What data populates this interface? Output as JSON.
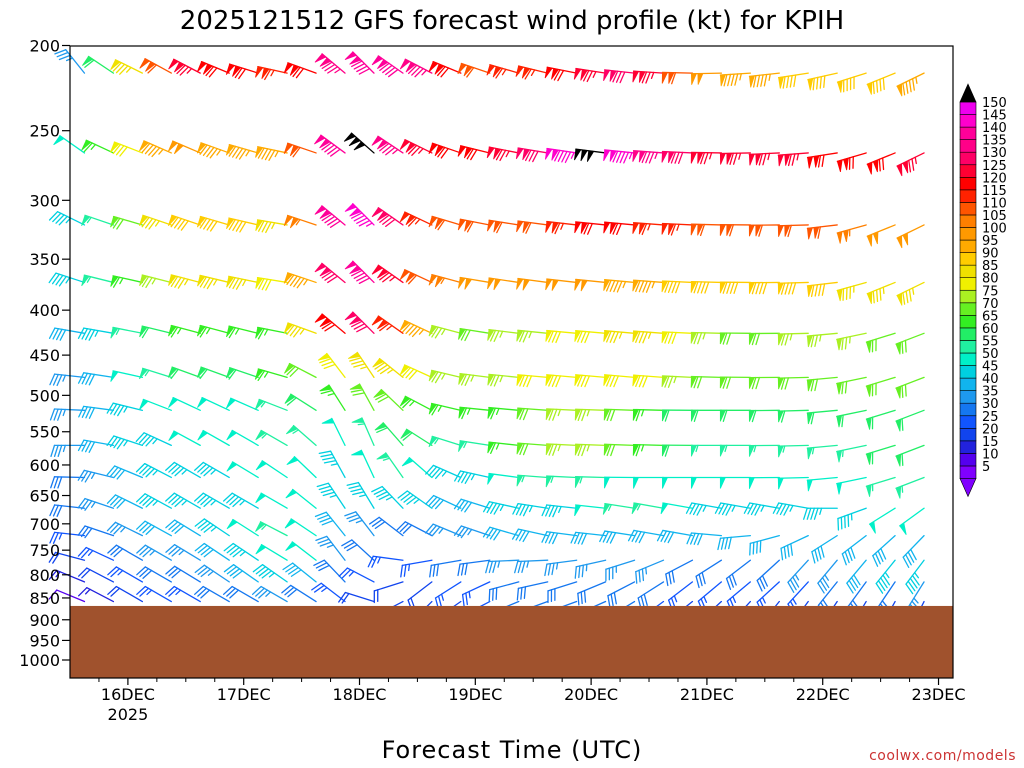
{
  "chart_data": {
    "type": "wind_barb_profile",
    "title": "2025121512 GFS forecast wind profile (kt) for KPIH",
    "xlabel": "Forecast Time (UTC)",
    "ylabel": "",
    "y_axis": {
      "unit": "hPa",
      "scale": "log",
      "range": [
        1000,
        200
      ],
      "ticks": [
        200,
        250,
        300,
        350,
        400,
        450,
        500,
        550,
        600,
        650,
        700,
        750,
        800,
        850,
        900,
        950,
        1000
      ]
    },
    "x_axis": {
      "range_hours": [
        0,
        183
      ],
      "ticks": [
        {
          "label": "16DEC",
          "sub": "2025",
          "hour": 12
        },
        {
          "label": "17DEC",
          "sub": "",
          "hour": 36
        },
        {
          "label": "18DEC",
          "sub": "",
          "hour": 60
        },
        {
          "label": "19DEC",
          "sub": "",
          "hour": 84
        },
        {
          "label": "20DEC",
          "sub": "",
          "hour": 108
        },
        {
          "label": "21DEC",
          "sub": "",
          "hour": 132
        },
        {
          "label": "22DEC",
          "sub": "",
          "hour": 156
        },
        {
          "label": "23DEC",
          "sub": "",
          "hour": 180
        }
      ]
    },
    "terrain": {
      "top_pressure": 868,
      "color": "#a0522d"
    },
    "colorbar": {
      "levels": [
        5,
        10,
        15,
        20,
        25,
        30,
        35,
        40,
        45,
        50,
        55,
        60,
        65,
        70,
        75,
        80,
        85,
        90,
        95,
        100,
        105,
        110,
        115,
        120,
        125,
        130,
        135,
        140,
        145,
        150
      ],
      "colors": [
        "#8000ff",
        "#5500ee",
        "#2222dd",
        "#1144ee",
        "#1155ff",
        "#1577f0",
        "#1e99ee",
        "#11b4ee",
        "#00d0e0",
        "#00f0c8",
        "#20f0a0",
        "#22ee66",
        "#33ee22",
        "#66f022",
        "#aaf022",
        "#f0f000",
        "#f0e000",
        "#ffcc00",
        "#ffaa00",
        "#ff9900",
        "#ff7f00",
        "#ff5500",
        "#ff2200",
        "#ff0000",
        "#ff0033",
        "#ff0066",
        "#ff0088",
        "#ff0099",
        "#ff00cc",
        "#ee00ee"
      ],
      "overflow_color": "#000000",
      "underflow_color": "#8000ff"
    },
    "profile_levels_hpa": [
      215,
      265,
      320,
      372,
      425,
      477,
      520,
      570,
      620,
      672,
      722,
      770,
      815,
      858
    ],
    "anchors": [
      {
        "hour": 0,
        "speeds": [
          24,
          40,
          38,
          38,
          35,
          30,
          32,
          30,
          28,
          25,
          22,
          18,
          10,
          6
        ],
        "dirs": [
          330,
          310,
          300,
          290,
          280,
          275,
          270,
          265,
          265,
          270,
          270,
          280,
          290,
          290
        ]
      },
      {
        "hour": 12,
        "speeds": [
          70,
          70,
          62,
          60,
          50,
          45,
          42,
          42,
          40,
          38,
          35,
          28,
          25,
          18
        ],
        "dirs": [
          295,
          290,
          285,
          282,
          280,
          280,
          280,
          285,
          290,
          295,
          295,
          300,
          300,
          300
        ]
      },
      {
        "hour": 24,
        "speeds": [
          125,
          100,
          90,
          82,
          65,
          58,
          50,
          48,
          45,
          45,
          40,
          35,
          30,
          25
        ],
        "dirs": [
          300,
          295,
          290,
          285,
          285,
          290,
          295,
          298,
          300,
          300,
          300,
          300,
          300,
          300
        ]
      },
      {
        "hour": 36,
        "speeds": [
          120,
          95,
          90,
          85,
          62,
          60,
          50,
          50,
          48,
          45,
          45,
          40,
          35,
          30
        ],
        "dirs": [
          290,
          288,
          285,
          283,
          285,
          290,
          295,
          300,
          300,
          300,
          305,
          305,
          305,
          300
        ]
      },
      {
        "hour": 48,
        "speeds": [
          110,
          95,
          85,
          80,
          65,
          65,
          58,
          55,
          50,
          50,
          55,
          55,
          45,
          35
        ],
        "dirs": [
          280,
          280,
          278,
          278,
          280,
          285,
          290,
          300,
          305,
          300,
          295,
          300,
          305,
          300
        ]
      },
      {
        "hour": 60,
        "speeds": [
          140,
          155,
          155,
          145,
          140,
          85,
          68,
          50,
          45,
          42,
          35,
          30,
          28,
          22
        ],
        "dirs": [
          320,
          315,
          320,
          320,
          320,
          335,
          340,
          345,
          340,
          335,
          330,
          330,
          320,
          310
        ]
      },
      {
        "hour": 72,
        "speeds": [
          140,
          125,
          120,
          115,
          105,
          85,
          68,
          60,
          55,
          45,
          30,
          25,
          20,
          18
        ],
        "dirs": [
          300,
          300,
          300,
          300,
          300,
          300,
          305,
          310,
          320,
          310,
          300,
          260,
          230,
          220
        ]
      },
      {
        "hour": 84,
        "speeds": [
          110,
          115,
          108,
          102,
          68,
          72,
          62,
          52,
          42,
          38,
          35,
          30,
          25,
          20
        ],
        "dirs": [
          290,
          285,
          282,
          280,
          280,
          278,
          276,
          280,
          285,
          290,
          290,
          260,
          240,
          240
        ]
      },
      {
        "hour": 96,
        "speeds": [
          115,
          125,
          110,
          100,
          75,
          78,
          68,
          68,
          52,
          45,
          40,
          35,
          32,
          30
        ],
        "dirs": [
          285,
          280,
          278,
          278,
          276,
          275,
          275,
          275,
          275,
          280,
          285,
          270,
          260,
          250
        ]
      },
      {
        "hour": 108,
        "speeds": [
          120,
          152,
          118,
          100,
          80,
          82,
          75,
          75,
          55,
          45,
          42,
          35,
          32,
          30
        ],
        "dirs": [
          280,
          278,
          276,
          276,
          275,
          275,
          272,
          272,
          272,
          275,
          275,
          260,
          250,
          250
        ]
      },
      {
        "hour": 120,
        "speeds": [
          130,
          140,
          118,
          96,
          88,
          80,
          70,
          68,
          50,
          55,
          42,
          35,
          30,
          28
        ],
        "dirs": [
          275,
          275,
          275,
          275,
          275,
          275,
          272,
          272,
          270,
          280,
          280,
          250,
          240,
          235
        ]
      },
      {
        "hour": 132,
        "speeds": [
          100,
          125,
          112,
          90,
          75,
          72,
          58,
          55,
          50,
          45,
          38,
          30,
          26,
          20
        ],
        "dirs": [
          270,
          272,
          272,
          272,
          272,
          272,
          270,
          270,
          270,
          280,
          280,
          240,
          230,
          230
        ]
      },
      {
        "hour": 144,
        "speeds": [
          95,
          125,
          108,
          90,
          70,
          72,
          58,
          55,
          50,
          45,
          38,
          30,
          25,
          18
        ],
        "dirs": [
          265,
          268,
          270,
          270,
          270,
          270,
          270,
          270,
          270,
          280,
          260,
          230,
          230,
          220
        ]
      },
      {
        "hour": 156,
        "speeds": [
          88,
          122,
          110,
          90,
          75,
          72,
          60,
          55,
          52,
          45,
          40,
          35,
          28,
          22
        ],
        "dirs": [
          260,
          265,
          268,
          268,
          268,
          268,
          268,
          268,
          268,
          280,
          240,
          220,
          220,
          215
        ]
      },
      {
        "hour": 168,
        "speeds": [
          90,
          120,
          100,
          85,
          72,
          70,
          60,
          58,
          52,
          48,
          40,
          42,
          30,
          22
        ],
        "dirs": [
          250,
          250,
          250,
          250,
          255,
          255,
          255,
          255,
          255,
          240,
          230,
          220,
          215,
          210
        ]
      },
      {
        "hour": 183,
        "speeds": [
          95,
          125,
          98,
          85,
          72,
          70,
          62,
          58,
          55,
          50,
          42,
          45,
          35,
          22
        ],
        "dirs": [
          240,
          240,
          240,
          240,
          245,
          245,
          245,
          245,
          245,
          230,
          220,
          215,
          210,
          205
        ]
      }
    ],
    "barb_time_step_hours": 6
  },
  "footer": {
    "credit": "coolwx.com/models"
  }
}
